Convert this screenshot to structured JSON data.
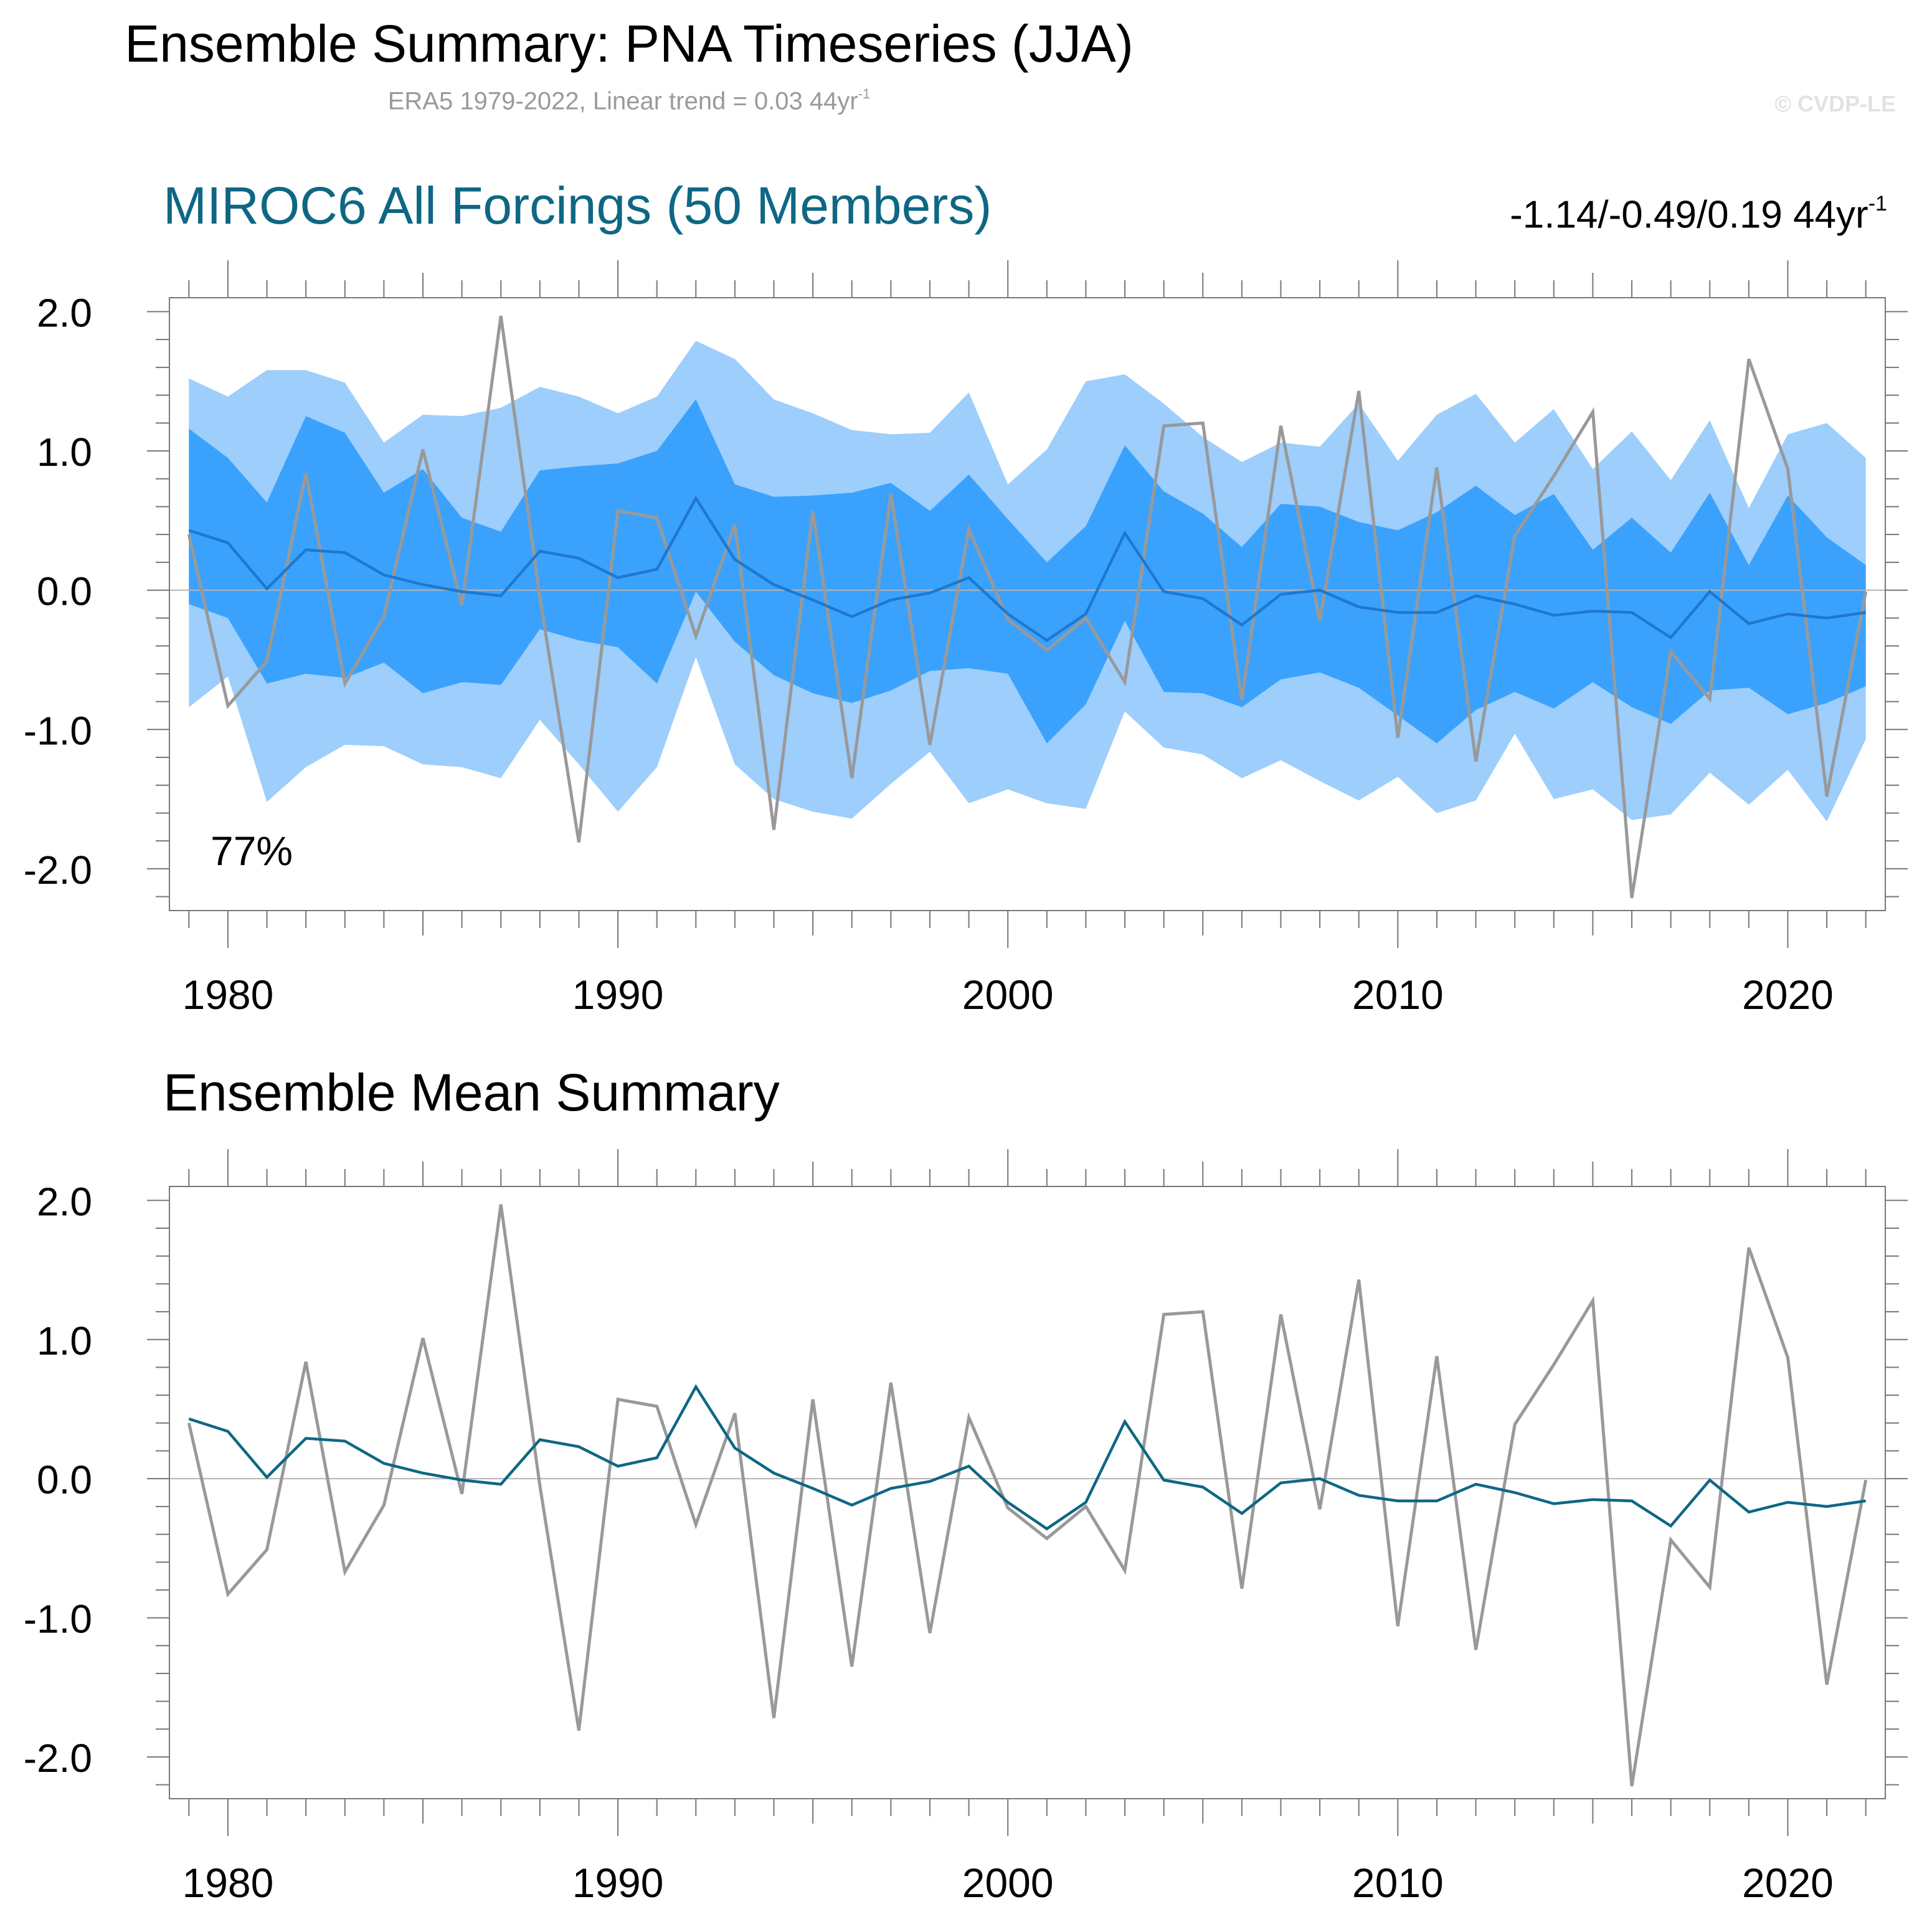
{
  "figure": {
    "title": "Ensemble Summary: PNA Timeseries (JJA)",
    "subtitle_main": "ERA5 1979-2022, Linear trend = 0.03 44yr",
    "subtitle_sup": "-1",
    "copyright": "© CVDP-LE",
    "colors": {
      "band_outer": "#9dcefc",
      "band_inner": "#3aa2fd",
      "panel1_mean": "#1e78ce",
      "panel2_mean": "#0e6784",
      "observations": "#999999",
      "zero_line": "#b4b4b4",
      "panel_title_1": "#0e6784"
    }
  },
  "panels": [
    {
      "title": "MIROC6 All Forcings (50 Members)",
      "trend_text": "-1.14/-0.49/0.19 44yr",
      "trend_sup": "-1",
      "annotation": "77%"
    },
    {
      "title": "Ensemble Mean Summary"
    }
  ],
  "chart_data": [
    {
      "type": "line",
      "title": "MIROC6 All Forcings (50 Members)",
      "xlim": [
        1978.5,
        2022.5
      ],
      "ylim": [
        -2.3,
        2.1
      ],
      "x_ticks": [
        1980,
        1990,
        2000,
        2010,
        2020
      ],
      "y_ticks": [
        -2.0,
        -1.0,
        0.0,
        1.0,
        2.0
      ],
      "y_tick_labels": [
        "-2.0",
        "-1.0",
        "0.0",
        "1.0",
        "2.0"
      ],
      "grid": false,
      "x": [
        1979,
        1980,
        1981,
        1982,
        1983,
        1984,
        1985,
        1986,
        1987,
        1988,
        1989,
        1990,
        1991,
        1992,
        1993,
        1994,
        1995,
        1996,
        1997,
        1998,
        1999,
        2000,
        2001,
        2002,
        2003,
        2004,
        2005,
        2006,
        2007,
        2008,
        2009,
        2010,
        2011,
        2012,
        2013,
        2014,
        2015,
        2016,
        2017,
        2018,
        2019,
        2020,
        2021,
        2022
      ],
      "bands": [
        {
          "lower": [
            -0.84,
            -0.62,
            -1.52,
            -1.27,
            -1.11,
            -1.12,
            -1.25,
            -1.27,
            -1.35,
            -0.93,
            -1.25,
            -1.59,
            -1.27,
            -0.48,
            -1.25,
            -1.5,
            -1.59,
            -1.64,
            -1.39,
            -1.16,
            -1.53,
            -1.43,
            -1.53,
            -1.57,
            -0.87,
            -1.13,
            -1.18,
            -1.35,
            -1.22,
            -1.37,
            -1.51,
            -1.34,
            -1.6,
            -1.51,
            -1.03,
            -1.5,
            -1.43,
            -1.65,
            -1.61,
            -1.31,
            -1.54,
            -1.29,
            -1.66,
            -1.07
          ],
          "upper": [
            1.52,
            1.39,
            1.58,
            1.58,
            1.49,
            1.06,
            1.26,
            1.25,
            1.31,
            1.46,
            1.39,
            1.27,
            1.39,
            1.79,
            1.66,
            1.37,
            1.27,
            1.15,
            1.12,
            1.13,
            1.42,
            0.76,
            1.01,
            1.5,
            1.55,
            1.34,
            1.1,
            0.92,
            1.06,
            1.03,
            1.34,
            0.93,
            1.26,
            1.41,
            1.06,
            1.3,
            0.87,
            1.14,
            0.79,
            1.22,
            0.59,
            1.12,
            1.2,
            0.95
          ]
        },
        {
          "lower": [
            -0.1,
            -0.2,
            -0.67,
            -0.6,
            -0.63,
            -0.52,
            -0.74,
            -0.66,
            -0.68,
            -0.28,
            -0.36,
            -0.41,
            -0.67,
            -0.01,
            -0.37,
            -0.61,
            -0.74,
            -0.81,
            -0.72,
            -0.58,
            -0.56,
            -0.6,
            -1.1,
            -0.82,
            -0.22,
            -0.73,
            -0.74,
            -0.84,
            -0.64,
            -0.59,
            -0.7,
            -0.9,
            -1.1,
            -0.86,
            -0.73,
            -0.85,
            -0.66,
            -0.84,
            -0.96,
            -0.72,
            -0.7,
            -0.89,
            -0.81,
            -0.69
          ],
          "upper": [
            1.16,
            0.95,
            0.63,
            1.25,
            1.13,
            0.7,
            0.87,
            0.52,
            0.42,
            0.86,
            0.89,
            0.91,
            1.0,
            1.37,
            0.76,
            0.67,
            0.68,
            0.7,
            0.77,
            0.57,
            0.83,
            0.51,
            0.2,
            0.46,
            1.04,
            0.71,
            0.55,
            0.31,
            0.62,
            0.6,
            0.49,
            0.43,
            0.56,
            0.75,
            0.54,
            0.69,
            0.29,
            0.52,
            0.27,
            0.7,
            0.18,
            0.68,
            0.38,
            0.18
          ]
        }
      ],
      "series": [
        {
          "values": [
            0.43,
            0.34,
            0.01,
            0.29,
            0.27,
            0.11,
            0.04,
            -0.01,
            -0.04,
            0.28,
            0.23,
            0.09,
            0.15,
            0.66,
            0.22,
            0.04,
            -0.07,
            -0.19,
            -0.07,
            -0.02,
            0.09,
            -0.17,
            -0.36,
            -0.17,
            0.41,
            -0.01,
            -0.06,
            -0.25,
            -0.03,
            0.0,
            -0.12,
            -0.16,
            -0.16,
            -0.04,
            -0.1,
            -0.18,
            -0.15,
            -0.16,
            -0.34,
            -0.01,
            -0.24,
            -0.17,
            -0.2,
            -0.16
          ]
        },
        {
          "values": [
            0.4,
            -0.83,
            -0.51,
            0.84,
            -0.67,
            -0.19,
            1.01,
            -0.11,
            1.97,
            -0.05,
            -1.81,
            0.57,
            0.52,
            -0.33,
            0.47,
            -1.72,
            0.57,
            -1.35,
            0.69,
            -1.11,
            0.44,
            -0.21,
            -0.43,
            -0.2,
            -0.66,
            1.18,
            1.2,
            -0.79,
            1.18,
            -0.22,
            1.43,
            -1.06,
            0.88,
            -1.23,
            0.39,
            0.82,
            1.28,
            -2.21,
            -0.44,
            -0.78,
            1.66,
            0.87,
            -1.48,
            -0.01
          ]
        }
      ]
    },
    {
      "type": "line",
      "title": "Ensemble Mean Summary",
      "xlim": [
        1978.5,
        2022.5
      ],
      "ylim": [
        -2.3,
        2.1
      ],
      "x_ticks": [
        1980,
        1990,
        2000,
        2010,
        2020
      ],
      "y_ticks": [
        -2.0,
        -1.0,
        0.0,
        1.0,
        2.0
      ],
      "y_tick_labels": [
        "-2.0",
        "-1.0",
        "0.0",
        "1.0",
        "2.0"
      ],
      "grid": false,
      "x": [
        1979,
        1980,
        1981,
        1982,
        1983,
        1984,
        1985,
        1986,
        1987,
        1988,
        1989,
        1990,
        1991,
        1992,
        1993,
        1994,
        1995,
        1996,
        1997,
        1998,
        1999,
        2000,
        2001,
        2002,
        2003,
        2004,
        2005,
        2006,
        2007,
        2008,
        2009,
        2010,
        2011,
        2012,
        2013,
        2014,
        2015,
        2016,
        2017,
        2018,
        2019,
        2020,
        2021,
        2022
      ],
      "series": [
        {
          "values": [
            0.43,
            0.34,
            0.01,
            0.29,
            0.27,
            0.11,
            0.04,
            -0.01,
            -0.04,
            0.28,
            0.23,
            0.09,
            0.15,
            0.66,
            0.22,
            0.04,
            -0.07,
            -0.19,
            -0.07,
            -0.02,
            0.09,
            -0.17,
            -0.36,
            -0.17,
            0.41,
            -0.01,
            -0.06,
            -0.25,
            -0.03,
            0.0,
            -0.12,
            -0.16,
            -0.16,
            -0.04,
            -0.1,
            -0.18,
            -0.15,
            -0.16,
            -0.34,
            -0.01,
            -0.24,
            -0.17,
            -0.2,
            -0.16
          ]
        },
        {
          "values": [
            0.4,
            -0.83,
            -0.51,
            0.84,
            -0.67,
            -0.19,
            1.01,
            -0.11,
            1.97,
            -0.05,
            -1.81,
            0.57,
            0.52,
            -0.33,
            0.47,
            -1.72,
            0.57,
            -1.35,
            0.69,
            -1.11,
            0.44,
            -0.21,
            -0.43,
            -0.2,
            -0.66,
            1.18,
            1.2,
            -0.79,
            1.18,
            -0.22,
            1.43,
            -1.06,
            0.88,
            -1.23,
            0.39,
            0.82,
            1.28,
            -2.21,
            -0.44,
            -0.78,
            1.66,
            0.87,
            -1.48,
            -0.01
          ]
        }
      ]
    }
  ]
}
